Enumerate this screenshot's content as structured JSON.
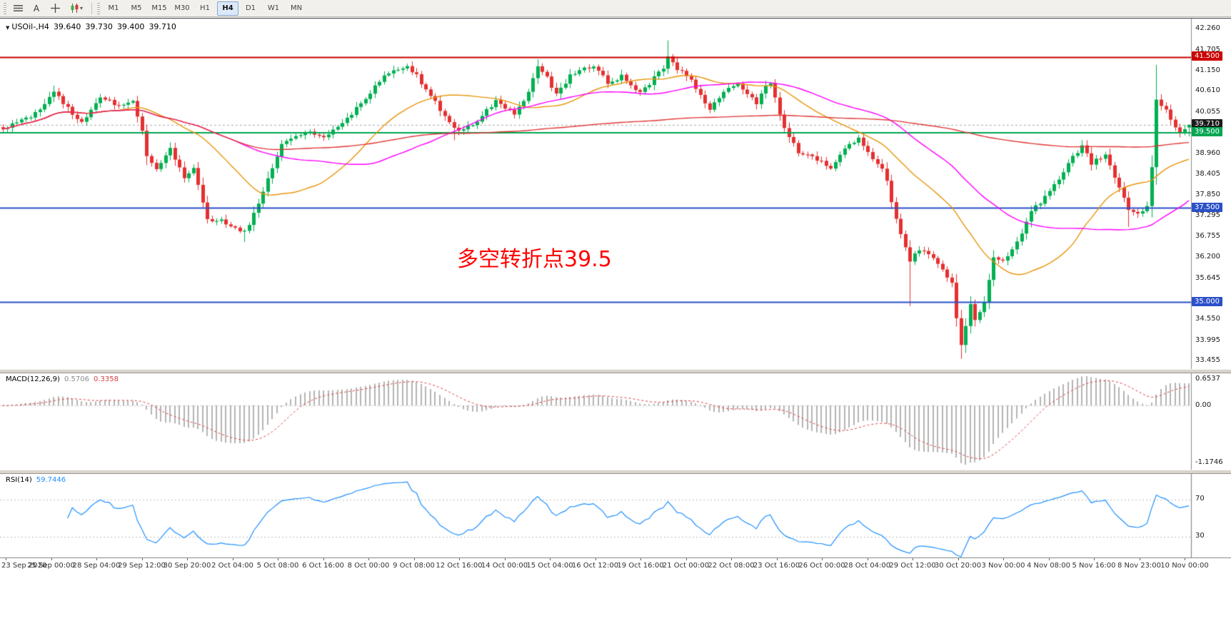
{
  "toolbar": {
    "tools": {
      "text_label": "A"
    },
    "tool_icons": [
      "menu-icon",
      "text-tool",
      "crosshair-icon",
      "candlestick-chart-icon"
    ],
    "timeframes": [
      {
        "label": "M1",
        "active": false
      },
      {
        "label": "M5",
        "active": false
      },
      {
        "label": "M15",
        "active": false
      },
      {
        "label": "M30",
        "active": false
      },
      {
        "label": "H1",
        "active": false
      },
      {
        "label": "H4",
        "active": true
      },
      {
        "label": "D1",
        "active": false
      },
      {
        "label": "W1",
        "active": false
      },
      {
        "label": "MN",
        "active": false
      }
    ]
  },
  "price_chart": {
    "symbol_tf": "USOil-,H4",
    "ohlc": {
      "open": "39.640",
      "high": "39.730",
      "low": "39.400",
      "close": "39.710"
    },
    "annotation": {
      "text": "多空转折点39.5",
      "color": "#ff0000"
    },
    "axis_labels": [
      "42.260",
      "41.705",
      "41.150",
      "40.610",
      "40.055",
      "38.960",
      "38.405",
      "37.850",
      "37.295",
      "36.755",
      "36.200",
      "35.645",
      "34.550",
      "33.995",
      "33.455"
    ],
    "price_tags": [
      {
        "value": "41.500",
        "bg": "#cc0000"
      },
      {
        "value": "39.710",
        "bg": "#1a1a1a"
      },
      {
        "value": "39.500",
        "bg": "#00a651"
      },
      {
        "value": "37.500",
        "bg": "#2b50c8"
      },
      {
        "value": "35.000",
        "bg": "#2b50c8"
      }
    ]
  },
  "macd": {
    "label": "MACD(12,26,9)",
    "value_main": "0.5706",
    "value_signal": "0.3358",
    "axis": [
      "0.6537",
      "0.00",
      "-1.1746"
    ]
  },
  "rsi": {
    "label": "RSI(14)",
    "value": "59.7446",
    "axis": [
      "70",
      "30"
    ]
  },
  "time_axis": {
    "labels": [
      "23 Sep 2020",
      "25 Sep 00:00",
      "28 Sep 04:00",
      "29 Sep 12:00",
      "30 Sep 20:00",
      "2 Oct 04:00",
      "5 Oct 08:00",
      "6 Oct 16:00",
      "8 Oct 00:00",
      "9 Oct 08:00",
      "12 Oct 16:00",
      "14 Oct 00:00",
      "15 Oct 04:00",
      "16 Oct 12:00",
      "19 Oct 16:00",
      "21 Oct 00:00",
      "22 Oct 08:00",
      "23 Oct 16:00",
      "26 Oct 00:00",
      "28 Oct 04:00",
      "29 Oct 12:00",
      "30 Oct 20:00",
      "3 Nov 00:00",
      "4 Nov 08:00",
      "5 Nov 16:00",
      "8 Nov 23:00",
      "10 Nov 00:00"
    ]
  },
  "chart_data": {
    "type": "candlestick",
    "symbol": "USOil-",
    "timeframe": "H4",
    "bars": 256,
    "ylim": [
      33.2,
      42.4
    ],
    "close_keypoints": [
      [
        0,
        39.6
      ],
      [
        3,
        39.75
      ],
      [
        7,
        40.0
      ],
      [
        11,
        40.55
      ],
      [
        13,
        40.3
      ],
      [
        17,
        39.75
      ],
      [
        21,
        40.45
      ],
      [
        25,
        40.2
      ],
      [
        28,
        40.35
      ],
      [
        30,
        39.6
      ],
      [
        31,
        38.9
      ],
      [
        33,
        38.5
      ],
      [
        36,
        39.1
      ],
      [
        39,
        38.3
      ],
      [
        41,
        38.6
      ],
      [
        44,
        37.2
      ],
      [
        47,
        37.15
      ],
      [
        50,
        37.0
      ],
      [
        52,
        36.85
      ],
      [
        55,
        37.6
      ],
      [
        58,
        38.6
      ],
      [
        60,
        39.2
      ],
      [
        63,
        39.4
      ],
      [
        66,
        39.55
      ],
      [
        69,
        39.35
      ],
      [
        72,
        39.7
      ],
      [
        75,
        40.0
      ],
      [
        78,
        40.4
      ],
      [
        81,
        40.9
      ],
      [
        83,
        41.1
      ],
      [
        85,
        41.2
      ],
      [
        87,
        41.25
      ],
      [
        89,
        41.05
      ],
      [
        90,
        40.8
      ],
      [
        93,
        40.3
      ],
      [
        95,
        39.9
      ],
      [
        97,
        39.6
      ],
      [
        98,
        39.55
      ],
      [
        100,
        39.7
      ],
      [
        102,
        39.8
      ],
      [
        104,
        40.1
      ],
      [
        106,
        40.35
      ],
      [
        108,
        40.15
      ],
      [
        110,
        40.0
      ],
      [
        112,
        40.3
      ],
      [
        113,
        40.6
      ],
      [
        115,
        41.3
      ],
      [
        117,
        40.95
      ],
      [
        119,
        40.5
      ],
      [
        121,
        40.8
      ],
      [
        122,
        41.0
      ],
      [
        124,
        41.15
      ],
      [
        127,
        41.25
      ],
      [
        129,
        41.0
      ],
      [
        130,
        40.8
      ],
      [
        133,
        41.0
      ],
      [
        135,
        40.75
      ],
      [
        137,
        40.55
      ],
      [
        139,
        40.8
      ],
      [
        140,
        41.0
      ],
      [
        142,
        41.15
      ],
      [
        143,
        41.5
      ],
      [
        145,
        41.2
      ],
      [
        148,
        40.9
      ],
      [
        150,
        40.5
      ],
      [
        152,
        40.15
      ],
      [
        155,
        40.6
      ],
      [
        158,
        40.8
      ],
      [
        160,
        40.55
      ],
      [
        162,
        40.3
      ],
      [
        164,
        40.7
      ],
      [
        165,
        40.85
      ],
      [
        166,
        40.4
      ],
      [
        168,
        39.6
      ],
      [
        170,
        39.2
      ],
      [
        171,
        39.0
      ],
      [
        173,
        38.9
      ],
      [
        175,
        38.8
      ],
      [
        177,
        38.65
      ],
      [
        178,
        38.6
      ],
      [
        181,
        39.1
      ],
      [
        184,
        39.35
      ],
      [
        186,
        39.0
      ],
      [
        187,
        38.8
      ],
      [
        189,
        38.5
      ],
      [
        190,
        38.2
      ],
      [
        192,
        37.2
      ],
      [
        193,
        36.8
      ],
      [
        195,
        36.1
      ],
      [
        197,
        36.4
      ],
      [
        199,
        36.3
      ],
      [
        200,
        36.2
      ],
      [
        202,
        35.9
      ],
      [
        204,
        35.5
      ],
      [
        205,
        34.6
      ],
      [
        206,
        33.9
      ],
      [
        207,
        34.4
      ],
      [
        208,
        35.0
      ],
      [
        209,
        34.5
      ],
      [
        211,
        35.0
      ],
      [
        213,
        36.2
      ],
      [
        215,
        36.1
      ],
      [
        218,
        36.6
      ],
      [
        221,
        37.4
      ],
      [
        224,
        37.8
      ],
      [
        227,
        38.3
      ],
      [
        229,
        38.7
      ],
      [
        232,
        39.15
      ],
      [
        234,
        38.7
      ],
      [
        237,
        38.9
      ],
      [
        239,
        38.3
      ],
      [
        242,
        37.5
      ],
      [
        244,
        37.35
      ],
      [
        246,
        37.55
      ],
      [
        247,
        38.6
      ],
      [
        248,
        40.35
      ],
      [
        250,
        40.1
      ],
      [
        251,
        39.8
      ],
      [
        253,
        39.45
      ],
      [
        254,
        39.64
      ],
      [
        255,
        39.71
      ]
    ],
    "wick_overrides": [
      {
        "i": 11,
        "h": 40.75
      },
      {
        "i": 52,
        "l": 36.6
      },
      {
        "i": 97,
        "l": 39.3
      },
      {
        "i": 115,
        "h": 41.45
      },
      {
        "i": 143,
        "h": 41.95
      },
      {
        "i": 195,
        "l": 34.9
      },
      {
        "i": 206,
        "l": 33.5
      },
      {
        "i": 242,
        "l": 37.0
      },
      {
        "i": 248,
        "h": 41.3
      }
    ],
    "last_bar": [
      39.64,
      39.73,
      39.4,
      39.71
    ],
    "style": {
      "up": "#00b050",
      "down": "#e53030",
      "current_price_line": "#aaaaaa"
    },
    "moving_averages": [
      {
        "period": 26,
        "color": "#e8960c",
        "name": "MA-orange"
      },
      {
        "period": 50,
        "color": "#ff00ff",
        "name": "MA-magenta"
      },
      {
        "period": 200,
        "color": "#e03434",
        "name": "MA-red"
      }
    ],
    "hlines": [
      {
        "price": 41.5,
        "color": "#cc0000",
        "width": 2
      },
      {
        "price": 39.5,
        "color": "#00a651",
        "width": 2
      },
      {
        "price": 37.5,
        "color": "#2b50c8",
        "width": 2
      },
      {
        "price": 35.0,
        "color": "#2b50c8",
        "width": 2
      }
    ],
    "macd_indicator": {
      "fast": 12,
      "slow": 26,
      "signal": 9,
      "current": 0.5706,
      "signal_current": 0.3358,
      "histogram_color": "#b4b4b4",
      "signal_color": "#e04040",
      "axis_max": 0.6537,
      "axis_min": -1.1746
    },
    "rsi_indicator": {
      "period": 14,
      "current": 59.7446,
      "color": "#1e90ff",
      "levels": [
        70,
        30
      ],
      "level_color": "#c0c0c0"
    }
  }
}
